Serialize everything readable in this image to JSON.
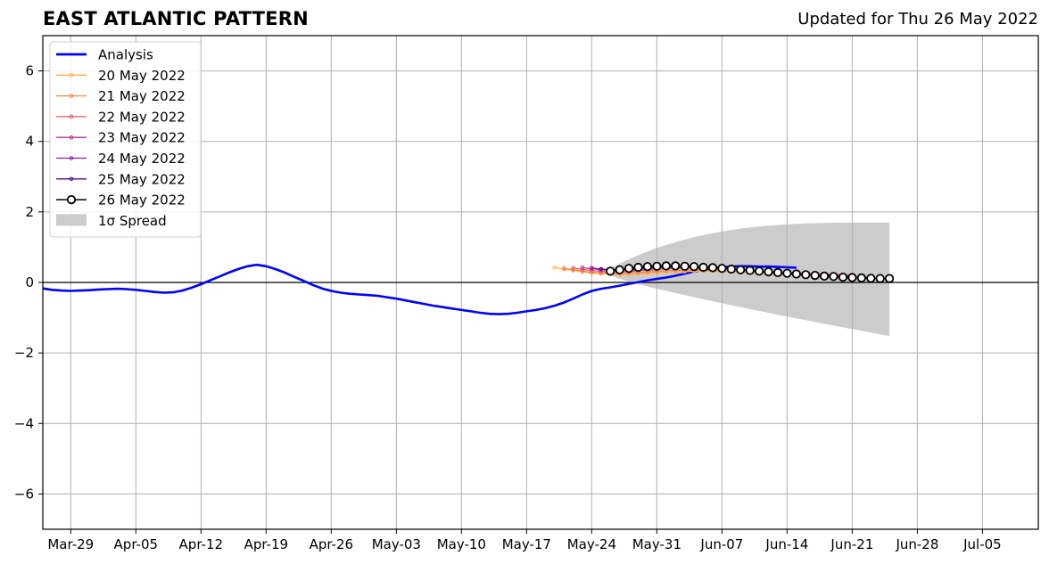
{
  "header": {
    "title": "EAST ATLANTIC PATTERN",
    "updated": "Updated for Thu 26 May 2022"
  },
  "chart_data": {
    "type": "line",
    "title": "EAST ATLANTIC PATTERN",
    "subtitle": "Updated for Thu 26 May 2022",
    "xlabel": "",
    "ylabel": "",
    "x_axis": {
      "type": "date",
      "range": [
        "2022-03-26",
        "2022-07-11"
      ]
    },
    "ylim": [
      -7,
      7
    ],
    "yticks": [
      -6,
      -4,
      -2,
      0,
      2,
      4,
      6
    ],
    "ytick_labels": [
      "−6",
      "−4",
      "−2",
      "0",
      "2",
      "4",
      "6"
    ],
    "xticks": [
      "2022-03-29",
      "2022-04-05",
      "2022-04-12",
      "2022-04-19",
      "2022-04-26",
      "2022-05-03",
      "2022-05-10",
      "2022-05-17",
      "2022-05-24",
      "2022-05-31",
      "2022-06-07",
      "2022-06-14",
      "2022-06-21",
      "2022-06-28",
      "2022-07-05"
    ],
    "xtick_labels": [
      "Mar-29",
      "Apr-05",
      "Apr-12",
      "Apr-19",
      "Apr-26",
      "May-03",
      "May-10",
      "May-17",
      "May-24",
      "May-31",
      "Jun-07",
      "Jun-14",
      "Jun-21",
      "Jun-28",
      "Jul-05"
    ],
    "grid": true,
    "legend_position": "top-left",
    "legend": [
      "Analysis",
      "20 May 2022",
      "21 May 2022",
      "22 May 2022",
      "23 May 2022",
      "24 May 2022",
      "25 May 2022",
      "26 May 2022",
      "1σ Spread"
    ],
    "colors": {
      "analysis": "#0000ff",
      "spread": "#cccccc",
      "zero_line": "#000000",
      "grid": "#b0b0b0"
    },
    "analysis": {
      "name": "Analysis",
      "start": "2022-03-26",
      "values": [
        -0.17,
        -0.21,
        -0.23,
        -0.24,
        -0.23,
        -0.22,
        -0.2,
        -0.19,
        -0.18,
        -0.19,
        -0.21,
        -0.24,
        -0.27,
        -0.29,
        -0.28,
        -0.23,
        -0.15,
        -0.05,
        0.06,
        0.17,
        0.28,
        0.38,
        0.46,
        0.5,
        0.46,
        0.38,
        0.28,
        0.16,
        0.05,
        -0.07,
        -0.17,
        -0.24,
        -0.29,
        -0.32,
        -0.34,
        -0.36,
        -0.38,
        -0.42,
        -0.46,
        -0.51,
        -0.56,
        -0.61,
        -0.66,
        -0.7,
        -0.74,
        -0.78,
        -0.82,
        -0.86,
        -0.89,
        -0.9,
        -0.89,
        -0.86,
        -0.82,
        -0.78,
        -0.73,
        -0.66,
        -0.57,
        -0.46,
        -0.34,
        -0.24,
        -0.18,
        -0.14,
        -0.09,
        -0.04,
        0.01,
        0.06,
        0.1,
        0.14,
        0.19,
        0.25,
        0.31,
        0.36,
        0.4,
        0.43,
        0.45,
        0.46,
        0.46,
        0.45,
        0.45,
        0.44,
        0.43,
        0.42
      ]
    },
    "spread": {
      "name": "1σ Spread",
      "start": "2022-05-26",
      "end": "2022-06-25",
      "upper_start": 0.4,
      "upper_end": 1.7,
      "lower_start": 0.2,
      "lower_end": -1.52
    },
    "forecasts": [
      {
        "name": "20 May 2022",
        "start": "2022-05-20",
        "color": "#ffb347",
        "values": [
          0.42,
          0.38,
          0.34,
          0.3,
          0.27,
          0.25,
          0.23,
          0.22,
          0.23,
          0.24,
          0.26,
          0.28,
          0.29,
          0.3,
          0.31,
          0.32,
          0.32,
          0.32,
          0.31,
          0.3,
          0.29,
          0.28,
          0.26,
          0.25,
          0.23,
          0.22,
          0.2,
          0.19,
          0.17,
          0.16,
          0.15,
          0.14,
          0.13
        ]
      },
      {
        "name": "21 May 2022",
        "start": "2022-05-21",
        "color": "#f4874b",
        "values": [
          0.4,
          0.36,
          0.32,
          0.29,
          0.27,
          0.26,
          0.26,
          0.27,
          0.28,
          0.3,
          0.31,
          0.33,
          0.34,
          0.35,
          0.35,
          0.34,
          0.34,
          0.33,
          0.32,
          0.31,
          0.29,
          0.28,
          0.26,
          0.25,
          0.24,
          0.22,
          0.21,
          0.2,
          0.19,
          0.18,
          0.17,
          0.16
        ]
      },
      {
        "name": "22 May 2022",
        "start": "2022-05-22",
        "color": "#e05c6e",
        "values": [
          0.41,
          0.37,
          0.34,
          0.31,
          0.3,
          0.3,
          0.31,
          0.33,
          0.35,
          0.37,
          0.39,
          0.4,
          0.41,
          0.41,
          0.4,
          0.39,
          0.38,
          0.37,
          0.35,
          0.34,
          0.32,
          0.31,
          0.29,
          0.28,
          0.27,
          0.26,
          0.25,
          0.24,
          0.23,
          0.22,
          0.21
        ]
      },
      {
        "name": "23 May 2022",
        "start": "2022-05-23",
        "color": "#b5378a",
        "values": [
          0.42,
          0.39,
          0.36,
          0.34,
          0.34,
          0.35,
          0.37,
          0.39,
          0.41,
          0.42,
          0.43,
          0.43,
          0.43,
          0.42,
          0.41,
          0.39,
          0.38,
          0.36,
          0.34,
          0.32,
          0.3,
          0.29,
          0.27,
          0.26,
          0.24,
          0.23,
          0.22,
          0.2,
          0.19,
          0.18
        ]
      },
      {
        "name": "24 May 2022",
        "start": "2022-05-24",
        "color": "#8a1fa6",
        "values": [
          0.41,
          0.38,
          0.36,
          0.36,
          0.37,
          0.39,
          0.41,
          0.43,
          0.44,
          0.45,
          0.45,
          0.44,
          0.43,
          0.41,
          0.39,
          0.37,
          0.35,
          0.33,
          0.31,
          0.29,
          0.27,
          0.25,
          0.23,
          0.21,
          0.19,
          0.17,
          0.15,
          0.13,
          0.12
        ]
      },
      {
        "name": "25 May 2022",
        "start": "2022-05-25",
        "color": "#4a0f8a",
        "values": [
          0.38,
          0.36,
          0.36,
          0.38,
          0.4,
          0.42,
          0.44,
          0.45,
          0.46,
          0.46,
          0.45,
          0.44,
          0.42,
          0.4,
          0.38,
          0.36,
          0.34,
          0.32,
          0.3,
          0.28,
          0.26,
          0.24,
          0.22,
          0.2,
          0.18,
          0.16,
          0.14,
          0.13
        ]
      }
    ],
    "latest_forecast": {
      "name": "26 May 2022",
      "start": "2022-05-26",
      "color": "#000000",
      "values": [
        0.32,
        0.36,
        0.4,
        0.43,
        0.45,
        0.46,
        0.47,
        0.47,
        0.46,
        0.45,
        0.43,
        0.42,
        0.4,
        0.38,
        0.36,
        0.34,
        0.32,
        0.3,
        0.28,
        0.26,
        0.24,
        0.22,
        0.2,
        0.18,
        0.17,
        0.15,
        0.14,
        0.13,
        0.12,
        0.11,
        0.11
      ]
    }
  }
}
